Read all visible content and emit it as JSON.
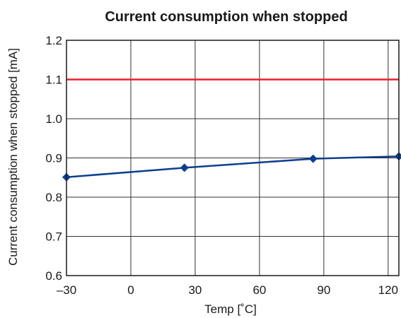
{
  "chart_data": {
    "type": "line",
    "title": "Current consumption when stopped",
    "xlabel": "Temp [˚C]",
    "ylabel": "Current consumption when stopped [mA]",
    "xlim": [
      -30,
      125
    ],
    "ylim": [
      0.6,
      1.2
    ],
    "x_ticks": [
      -30,
      0,
      30,
      60,
      90,
      120
    ],
    "x_tick_labels": [
      "–30",
      "0",
      "30",
      "60",
      "90",
      "120"
    ],
    "y_ticks": [
      0.6,
      0.7,
      0.8,
      0.9,
      1.0,
      1.1,
      1.2
    ],
    "y_tick_labels": [
      "0.6",
      "0.7",
      "0.8",
      "0.9",
      "1.0",
      "1.1",
      "1.2"
    ],
    "grid": true,
    "series": [
      {
        "color": "#0d3f8f",
        "marker": "diamond",
        "x": [
          -30,
          25,
          85,
          125
        ],
        "y": [
          0.851,
          0.875,
          0.898,
          0.904
        ]
      },
      {
        "color": "#e8202a",
        "x": [
          -30,
          125
        ],
        "y": [
          1.1,
          1.1
        ]
      }
    ]
  }
}
